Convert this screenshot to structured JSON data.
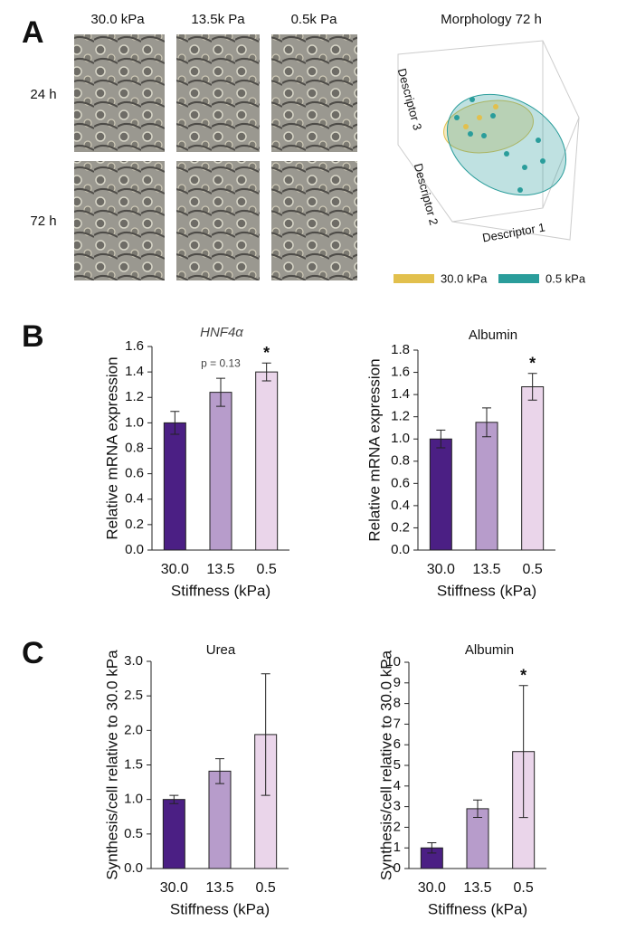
{
  "panel_labels": [
    "A",
    "B",
    "C"
  ],
  "panel_a": {
    "columns": [
      "30.0 kPa",
      "13.5k Pa",
      "0.5k Pa"
    ],
    "rows": [
      "24 h",
      "72 h"
    ]
  },
  "morphology": {
    "title": "Morphology 72 h",
    "axis_labels": [
      "Descriptor 3",
      "Descriptor 2",
      "Descriptor 1"
    ],
    "series": [
      {
        "name": "30.0 kPa",
        "color": "#e2c04d"
      },
      {
        "name": "0.5 kPa",
        "color": "#2a9d9b"
      }
    ]
  },
  "chart_data": [
    {
      "type": "bar",
      "title": "HNF4α",
      "title_italic": true,
      "ylabel": "Relative mRNA expression",
      "xlabel": "Stiffness (kPa)",
      "categories": [
        "30.0",
        "13.5",
        "0.5"
      ],
      "values": [
        1.0,
        1.24,
        1.4
      ],
      "errors": [
        0.09,
        0.11,
        0.07
      ],
      "colors": [
        "#4b1f84",
        "#b79ccb",
        "#ead5ea"
      ],
      "ylim": [
        0,
        1.6
      ],
      "yticks": [
        {
          "value": 0,
          "label": "0.0"
        },
        {
          "value": 0.2,
          "label": "0.2"
        },
        {
          "value": 0.4,
          "label": "0.4"
        },
        {
          "value": 0.6,
          "label": "0.6"
        },
        {
          "value": 0.8,
          "label": "0.8"
        },
        {
          "value": 1,
          "label": "1.0"
        },
        {
          "value": 1.2,
          "label": "1.2"
        },
        {
          "value": 1.4,
          "label": "1.4"
        },
        {
          "value": 1.6,
          "label": "1.6"
        }
      ],
      "annotations": [
        {
          "text": "p = 0.13",
          "category": "13.5"
        },
        {
          "text": "*",
          "category": "0.5"
        }
      ]
    },
    {
      "type": "bar",
      "title": "Albumin",
      "ylabel": "Relative mRNA expression",
      "xlabel": "Stiffness (kPa)",
      "categories": [
        "30.0",
        "13.5",
        "0.5"
      ],
      "values": [
        1.0,
        1.15,
        1.47
      ],
      "errors": [
        0.08,
        0.13,
        0.12
      ],
      "colors": [
        "#4b1f84",
        "#b79ccb",
        "#ead5ea"
      ],
      "ylim": [
        0,
        1.8
      ],
      "yticks": [
        {
          "value": 0,
          "label": "0.0"
        },
        {
          "value": 0.2,
          "label": "0.2"
        },
        {
          "value": 0.4,
          "label": "0.4"
        },
        {
          "value": 0.6,
          "label": "0.6"
        },
        {
          "value": 0.8,
          "label": "0.8"
        },
        {
          "value": 1,
          "label": "1.0"
        },
        {
          "value": 1.2,
          "label": "1.2"
        },
        {
          "value": 1.4,
          "label": "1.4"
        },
        {
          "value": 1.6,
          "label": "1.6"
        },
        {
          "value": 1.8,
          "label": "1.8"
        }
      ],
      "annotations": [
        {
          "text": "*",
          "category": "0.5"
        }
      ]
    },
    {
      "type": "bar",
      "title": "Urea",
      "ylabel": "Synthesis/cell relative to 30.0 kPa",
      "xlabel": "Stiffness (kPa)",
      "categories": [
        "30.0",
        "13.5",
        "0.5"
      ],
      "values": [
        1.0,
        1.41,
        1.94
      ],
      "errors": [
        0.06,
        0.18,
        0.88
      ],
      "colors": [
        "#4b1f84",
        "#b79ccb",
        "#ead5ea"
      ],
      "ylim": [
        0,
        3
      ],
      "yticks": [
        {
          "value": 0,
          "label": "0.0"
        },
        {
          "value": 0.5,
          "label": "0.5"
        },
        {
          "value": 1,
          "label": "1.0"
        },
        {
          "value": 1.5,
          "label": "1.5"
        },
        {
          "value": 2,
          "label": "2.0"
        },
        {
          "value": 2.5,
          "label": "2.5"
        },
        {
          "value": 3,
          "label": "3.0"
        }
      ]
    },
    {
      "type": "bar",
      "title": "Albumin",
      "ylabel": "Synthesis/cell relative to 30.0 kPa",
      "xlabel": "Stiffness (kPa)",
      "categories": [
        "30.0",
        "13.5",
        "0.5"
      ],
      "values": [
        1.0,
        2.9,
        5.67
      ],
      "errors": [
        0.25,
        0.42,
        3.2
      ],
      "colors": [
        "#4b1f84",
        "#b79ccb",
        "#ead5ea"
      ],
      "ylim": [
        0,
        10
      ],
      "yticks": [
        0,
        1,
        2,
        3,
        4,
        5,
        6,
        7,
        8,
        9,
        10
      ],
      "annotations": [
        {
          "text": "*",
          "category": "0.5"
        }
      ]
    }
  ]
}
